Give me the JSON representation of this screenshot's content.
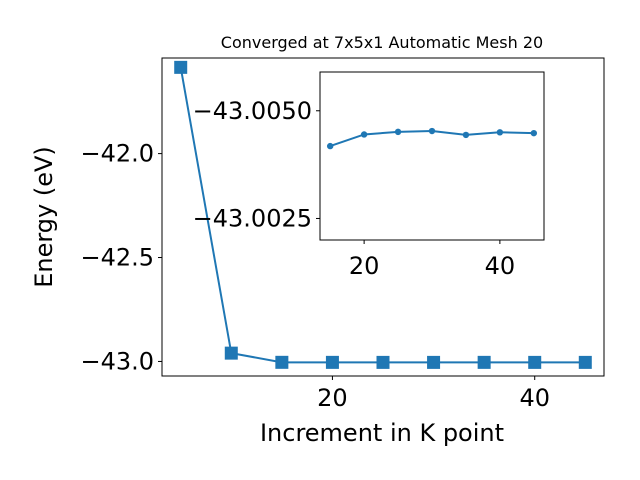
{
  "chart_data": [
    {
      "type": "line",
      "title": "Converged at 7x5x1 Automatic Mesh 20",
      "xlabel": "Increment in K point",
      "ylabel": "Energy (eV)",
      "xlim": [
        3.15,
        46.85
      ],
      "ylim": [
        -43.07,
        -41.54
      ],
      "xticks": [
        20,
        40
      ],
      "yticks": [
        -42.0,
        -42.5,
        -43.0
      ],
      "ytick_labels": [
        "−42.0",
        "−42.5",
        "−43.0"
      ],
      "marker": "square",
      "grid": false,
      "color": "#1f77b4",
      "series": [
        {
          "x": [
            5,
            10,
            15,
            20,
            25,
            30,
            35,
            40,
            45
          ],
          "y": [
            -41.585,
            -42.96,
            -43.0042,
            -43.0044,
            -43.0045,
            -43.0045,
            -43.0044,
            -43.0045,
            -43.0045
          ]
        }
      ]
    },
    {
      "type": "line",
      "title": "",
      "xlabel": "",
      "ylabel": "",
      "xlim": [
        13.5,
        46.5
      ],
      "ylim": [
        -43.002,
        -43.0059
      ],
      "xticks": [
        20,
        40
      ],
      "yticks": [
        -43.005,
        -43.0025
      ],
      "ytick_labels": [
        "−43.0050",
        "−43.0025"
      ],
      "marker": "circle",
      "grid": false,
      "color": "#1f77b4",
      "series": [
        {
          "x": [
            15,
            20,
            25,
            30,
            35,
            40,
            45
          ],
          "y": [
            -43.00418,
            -43.00445,
            -43.00451,
            -43.00453,
            -43.00444,
            -43.0045,
            -43.00448
          ]
        }
      ]
    }
  ]
}
